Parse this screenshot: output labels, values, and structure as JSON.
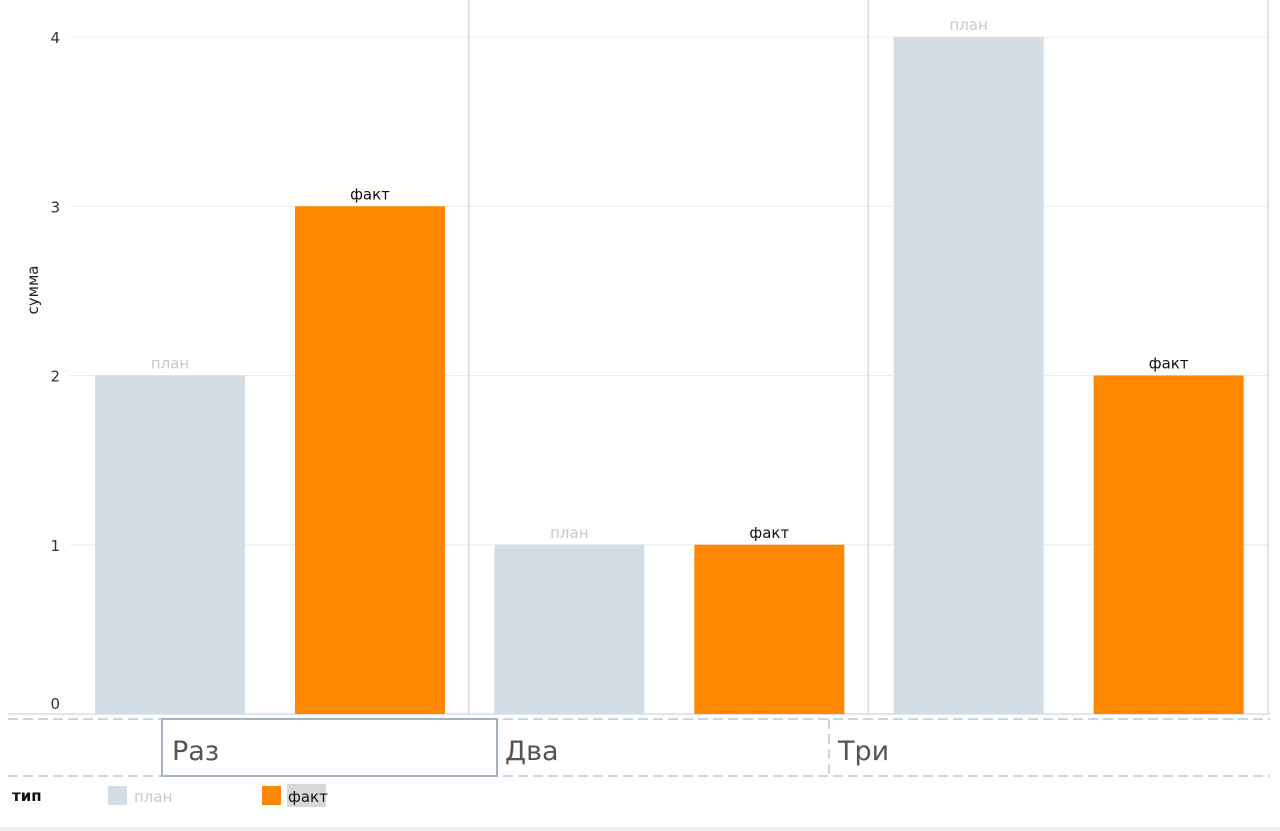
{
  "chart_data": {
    "type": "bar",
    "categories": [
      "Раз",
      "Два",
      "Три"
    ],
    "series": [
      {
        "name": "план",
        "values": [
          2,
          1,
          4
        ],
        "color": "#d3dde6",
        "label_color": "#c4c9ce"
      },
      {
        "name": "факт",
        "values": [
          3,
          1,
          2
        ],
        "color": "#ff8800",
        "label_color": "#111111"
      }
    ],
    "ylabel": "сумма",
    "ylim": [
      0,
      4
    ],
    "yticks": [
      "0",
      "1",
      "2",
      "3",
      "4"
    ],
    "grid": true,
    "bar_labels": true,
    "legend": {
      "title": "тип",
      "placement": "bottom-left",
      "items": [
        "план",
        "факт"
      ],
      "highlighted": "факт"
    },
    "selected_category": "Раз"
  }
}
